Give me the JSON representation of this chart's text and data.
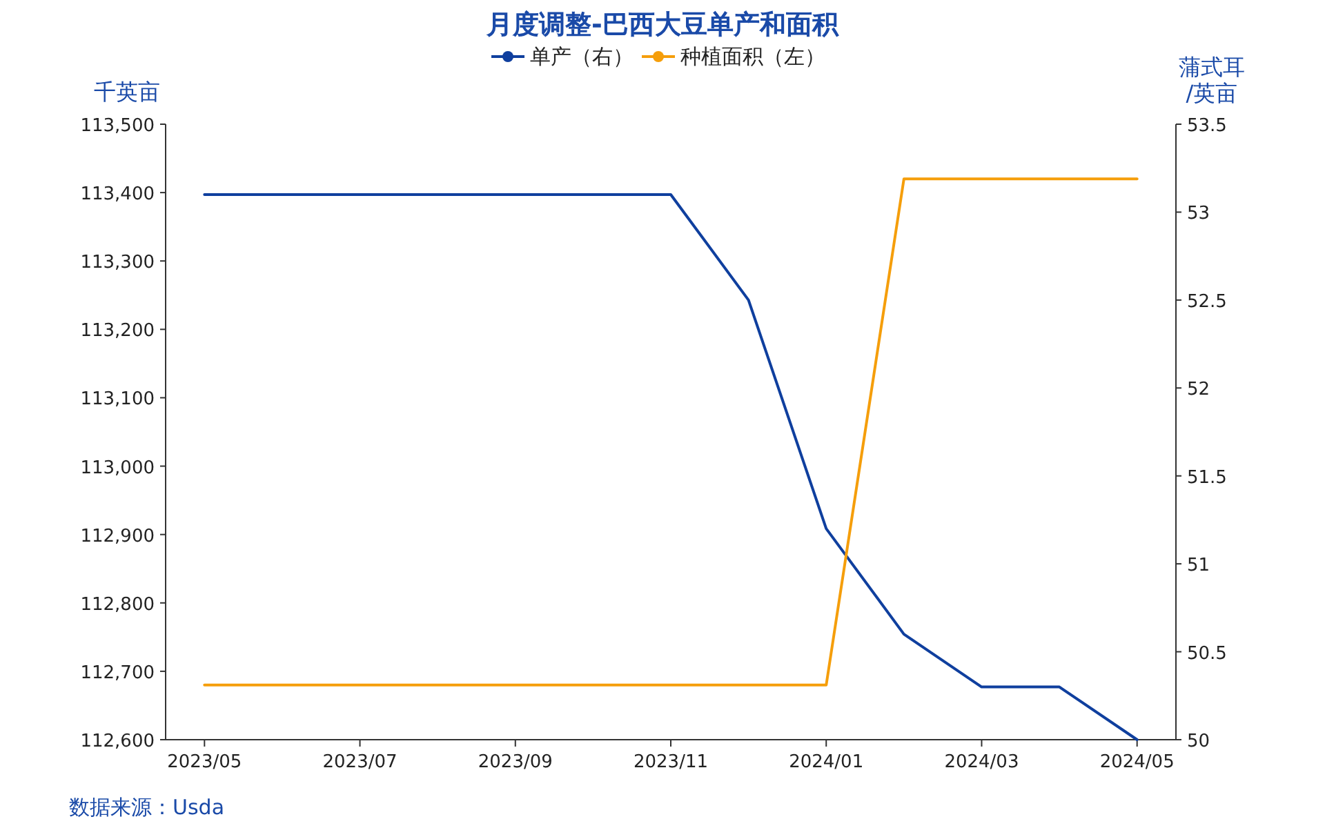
{
  "chart_data": {
    "type": "line",
    "title": "月度调整-巴西大豆单产和面积",
    "x": [
      "2023-05",
      "2023-06",
      "2023-07",
      "2023-08",
      "2023-09",
      "2023-10",
      "2023-11",
      "2023-12",
      "2024-01",
      "2024-02",
      "2024-03",
      "2024-04",
      "2024-05"
    ],
    "series": [
      {
        "name": "单产（右）",
        "color": "#0f3f9e",
        "axis": "y2",
        "values": [
          53.1,
          53.1,
          53.1,
          53.1,
          53.1,
          53.1,
          53.1,
          52.5,
          51.2,
          50.6,
          50.3,
          50.3,
          50.0
        ]
      },
      {
        "name": "种植面积（左）",
        "color": "#f59e0b",
        "values": [
          112680,
          112680,
          112680,
          112680,
          112680,
          112680,
          112680,
          112680,
          112680,
          113420,
          113420,
          113420,
          113420
        ]
      }
    ],
    "ylabel": "千英亩",
    "y2label": "蒲式耳/英亩",
    "xlim": [
      "2023-04-16",
      "2024-05-16"
    ],
    "xticks": [
      {
        "value": "2023-05",
        "label": "2023/05"
      },
      {
        "value": "2023-07",
        "label": "2023/07"
      },
      {
        "value": "2023-09",
        "label": "2023/09"
      },
      {
        "value": "2023-11",
        "label": "2023/11"
      },
      {
        "value": "2024-01",
        "label": "2024/01"
      },
      {
        "value": "2024-03",
        "label": "2024/03"
      },
      {
        "value": "2024-05",
        "label": "2024/05"
      }
    ],
    "ylim": [
      112600,
      113500
    ],
    "yticks": [
      {
        "value": 112600,
        "label": "112,600"
      },
      {
        "value": 112700,
        "label": "112,700"
      },
      {
        "value": 112800,
        "label": "112,800"
      },
      {
        "value": 112900,
        "label": "112,900"
      },
      {
        "value": 113000,
        "label": "113,000"
      },
      {
        "value": 113100,
        "label": "113,100"
      },
      {
        "value": 113200,
        "label": "113,200"
      },
      {
        "value": 113300,
        "label": "113,300"
      },
      {
        "value": 113400,
        "label": "113,400"
      },
      {
        "value": 113500,
        "label": "113,500"
      }
    ],
    "y2lim": [
      50,
      53.5
    ],
    "y2ticks": [
      50,
      50.5,
      51,
      51.5,
      52,
      52.5,
      53,
      53.5
    ],
    "legend": "top",
    "grid": false,
    "annotations": [
      "数据来源：Usda"
    ]
  }
}
